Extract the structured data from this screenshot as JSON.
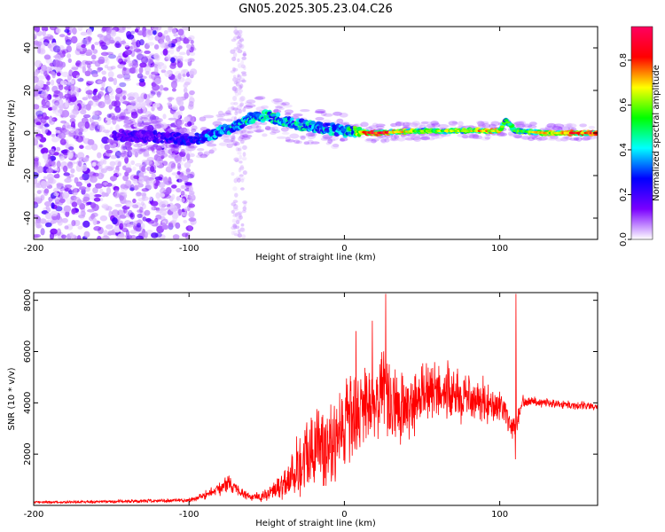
{
  "title": "GN05.2025.305.23.04.C26",
  "chart_data": [
    {
      "type": "heatmap",
      "name": "spectrogram",
      "xlabel": "Height of straight line (km)",
      "ylabel": "Frequency (Hz)",
      "xlim": [
        -200,
        163
      ],
      "ylim": [
        -50,
        50
      ],
      "xticks": [
        "-200",
        "-100",
        "0",
        "100"
      ],
      "yticks": [
        "-40",
        "-20",
        "0",
        "20",
        "40"
      ],
      "colorbar": {
        "label": "Normalized spectral amplitude",
        "range": [
          0,
          0.95
        ],
        "ticks": [
          "0.0",
          "0.2",
          "0.4",
          "0.6",
          "0.8"
        ],
        "colors": [
          "#ffffff",
          "#7a00ff",
          "#0000ff",
          "#00ffff",
          "#00ff00",
          "#ffff00",
          "#ff0000",
          "#ff0060"
        ]
      },
      "ridge": {
        "x": [
          -145,
          -120,
          -100,
          -90,
          -80,
          -70,
          -60,
          -50,
          -40,
          -30,
          -20,
          -10,
          0,
          20,
          50,
          80,
          100,
          104,
          110,
          130,
          163
        ],
        "y": [
          -1,
          -2,
          -3,
          -2,
          1,
          3,
          7,
          8,
          6,
          4,
          3,
          2,
          1,
          0,
          1,
          1,
          1,
          6,
          1,
          0,
          0
        ],
        "amplitude": [
          0.2,
          0.25,
          0.3,
          0.38,
          0.42,
          0.45,
          0.5,
          0.55,
          0.5,
          0.5,
          0.45,
          0.45,
          0.45,
          0.95,
          0.6,
          0.7,
          0.75,
          0.6,
          0.6,
          0.7,
          0.9
        ]
      },
      "noise_region_x": [
        -200,
        -97
      ]
    },
    {
      "type": "line",
      "name": "snr",
      "xlabel": "Height of straight line (km)",
      "ylabel": "SNR (10 * v/v)",
      "xlim": [
        -200,
        163
      ],
      "ylim": [
        0,
        8300
      ],
      "xticks": [
        "-200",
        "-100",
        "0",
        "100"
      ],
      "yticks": [
        "2000",
        "4000",
        "6000",
        "8000"
      ],
      "color": "#ff0000",
      "envelope": {
        "x": [
          -200,
          -150,
          -100,
          -90,
          -80,
          -75,
          -70,
          -60,
          -50,
          -40,
          -35,
          -30,
          -20,
          -10,
          0,
          10,
          20,
          25,
          30,
          40,
          50,
          60,
          70,
          80,
          90,
          100,
          105,
          110,
          115,
          130,
          150,
          163
        ],
        "mid": [
          120,
          150,
          200,
          400,
          650,
          900,
          650,
          300,
          400,
          800,
          1100,
          1600,
          2100,
          2600,
          3000,
          3600,
          4000,
          4500,
          3800,
          3700,
          4300,
          4500,
          4300,
          4200,
          4100,
          3900,
          3300,
          3000,
          4100,
          4000,
          3900,
          3850
        ],
        "amp": [
          60,
          70,
          100,
          200,
          300,
          400,
          300,
          150,
          300,
          700,
          1000,
          1600,
          1900,
          2100,
          2200,
          2000,
          1900,
          2000,
          2000,
          1600,
          1400,
          1400,
          1300,
          1100,
          1000,
          700,
          600,
          500,
          250,
          200,
          200,
          180
        ]
      },
      "spikes": [
        {
          "x": 26.5,
          "y": 8250
        },
        {
          "x": 110.5,
          "y": 8250
        },
        {
          "x": 110,
          "y": 1800
        },
        {
          "x": 18,
          "y": 7200
        },
        {
          "x": 7.5,
          "y": 6800
        }
      ]
    }
  ]
}
